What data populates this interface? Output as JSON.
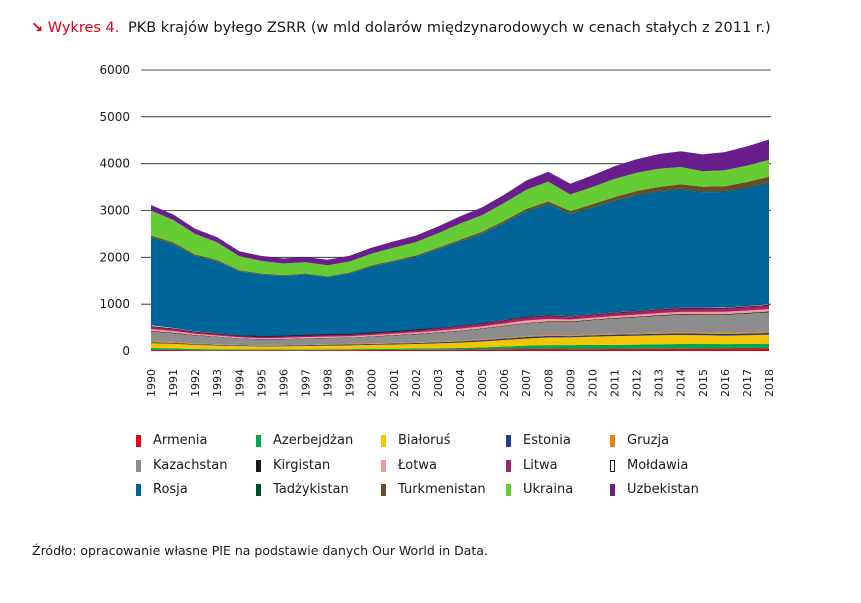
{
  "header": {
    "arrow": "↘",
    "prefix": "Wykres 4.",
    "title": "PKB krajów byłego ZSRR (w mld dolarów międzynarodowych w cenach stałych z 2011 r.)"
  },
  "source": "Źródło: opracowanie własne PIE na podstawie danych Our World in Data.",
  "chart_data": {
    "type": "area",
    "stacked": true,
    "title": "PKB krajów byłego ZSRR (w mld dolarów międzynarodowych w cenach stałych z 2011 r.)",
    "xlabel": "",
    "ylabel": "",
    "ylim": [
      0,
      6000
    ],
    "yticks": [
      0,
      1000,
      2000,
      3000,
      4000,
      5000,
      6000
    ],
    "grid": "horizontal",
    "legend_position": "bottom",
    "x": [
      1990,
      1991,
      1992,
      1993,
      1994,
      1995,
      1996,
      1997,
      1998,
      1999,
      2000,
      2001,
      2002,
      2003,
      2004,
      2005,
      2006,
      2007,
      2008,
      2009,
      2010,
      2011,
      2012,
      2013,
      2014,
      2015,
      2016,
      2017,
      2018
    ],
    "series": [
      {
        "name": "Armenia",
        "color": "#e2001a",
        "values": [
          25,
          22,
          15,
          14,
          14,
          15,
          16,
          17,
          18,
          19,
          20,
          22,
          24,
          27,
          30,
          34,
          38,
          43,
          46,
          39,
          40,
          42,
          45,
          47,
          49,
          50,
          50,
          54,
          57
        ]
      },
      {
        "name": "Azerbejdżan",
        "color": "#00a651",
        "values": [
          40,
          35,
          28,
          22,
          18,
          16,
          16,
          17,
          19,
          20,
          23,
          25,
          28,
          31,
          34,
          43,
          57,
          71,
          79,
          86,
          90,
          90,
          92,
          97,
          100,
          101,
          98,
          98,
          100
        ]
      },
      {
        "name": "Białoruś",
        "color": "#f5c400",
        "values": [
          100,
          98,
          88,
          82,
          72,
          65,
          66,
          73,
          79,
          82,
          88,
          92,
          97,
          104,
          115,
          126,
          139,
          150,
          165,
          165,
          177,
          186,
          189,
          191,
          194,
          186,
          181,
          185,
          191
        ]
      },
      {
        "name": "Estonia",
        "color": "#1d3f8f",
        "values": [
          20,
          18,
          16,
          15,
          15,
          15,
          16,
          18,
          19,
          19,
          20,
          22,
          23,
          25,
          27,
          29,
          32,
          35,
          33,
          28,
          29,
          31,
          32,
          33,
          34,
          34,
          35,
          37,
          38
        ]
      },
      {
        "name": "Gruzja",
        "color": "#e6830b",
        "values": [
          30,
          24,
          14,
          10,
          9,
          9,
          10,
          11,
          11,
          11,
          12,
          12,
          13,
          14,
          15,
          16,
          18,
          20,
          20,
          19,
          20,
          21,
          23,
          24,
          25,
          26,
          27,
          28,
          30
        ]
      },
      {
        "name": "Kazachstan",
        "color": "#8c8c8c",
        "values": [
          200,
          180,
          170,
          155,
          135,
          125,
          125,
          127,
          125,
          128,
          140,
          155,
          171,
          186,
          204,
          224,
          247,
          268,
          277,
          280,
          300,
          321,
          336,
          356,
          371,
          375,
          380,
          395,
          410
        ]
      },
      {
        "name": "Kirgistan",
        "color": "#1a1a1a",
        "values": [
          15,
          14,
          12,
          10,
          8,
          8,
          8,
          9,
          9,
          9,
          10,
          10,
          10,
          11,
          11,
          11,
          11,
          12,
          13,
          13,
          13,
          14,
          14,
          15,
          16,
          16,
          17,
          18,
          18
        ]
      },
      {
        "name": "Łotwa",
        "color": "#f09a9a",
        "values": [
          40,
          35,
          25,
          22,
          22,
          22,
          23,
          25,
          26,
          27,
          28,
          30,
          32,
          35,
          38,
          42,
          46,
          51,
          49,
          42,
          41,
          43,
          45,
          46,
          47,
          48,
          49,
          51,
          53
        ]
      },
      {
        "name": "Litwa",
        "color": "#a5206b",
        "values": [
          55,
          50,
          40,
          35,
          32,
          33,
          35,
          37,
          40,
          40,
          42,
          45,
          48,
          53,
          57,
          61,
          66,
          71,
          73,
          62,
          63,
          67,
          70,
          73,
          75,
          76,
          78,
          81,
          84
        ]
      },
      {
        "name": "Mołdawia",
        "color": "#ffffff",
        "stroke": "#1a1a1a",
        "values": [
          30,
          25,
          20,
          18,
          14,
          13,
          12,
          12,
          11,
          10,
          11,
          11,
          12,
          13,
          14,
          15,
          16,
          16,
          17,
          16,
          17,
          18,
          18,
          19,
          19,
          19,
          20,
          21,
          22
        ]
      },
      {
        "name": "Rosja",
        "color": "#006699",
        "values": [
          1870,
          1780,
          1600,
          1530,
          1360,
          1310,
          1270,
          1290,
          1220,
          1290,
          1410,
          1480,
          1550,
          1670,
          1790,
          1900,
          2060,
          2240,
          2360,
          2170,
          2270,
          2370,
          2460,
          2500,
          2520,
          2460,
          2460,
          2510,
          2580
        ]
      },
      {
        "name": "Tadżykistan",
        "color": "#004d26",
        "values": [
          12,
          11,
          8,
          7,
          6,
          6,
          5,
          5,
          5,
          5,
          6,
          6,
          7,
          7,
          8,
          9,
          9,
          10,
          11,
          11,
          12,
          13,
          14,
          15,
          16,
          17,
          18,
          19,
          20
        ]
      },
      {
        "name": "Turkmenistan",
        "color": "#6b4a26",
        "values": [
          30,
          29,
          25,
          22,
          20,
          18,
          17,
          14,
          15,
          17,
          20,
          23,
          25,
          28,
          32,
          36,
          40,
          45,
          53,
          56,
          61,
          70,
          77,
          85,
          94,
          100,
          106,
          112,
          119
        ]
      },
      {
        "name": "Ukraina",
        "color": "#66cc33",
        "values": [
          530,
          480,
          440,
          380,
          300,
          270,
          250,
          240,
          235,
          235,
          250,
          275,
          285,
          310,
          345,
          355,
          380,
          410,
          420,
          355,
          370,
          390,
          390,
          390,
          370,
          330,
          340,
          350,
          360
        ]
      },
      {
        "name": "Uzbekistan",
        "color": "#6a1d8c",
        "values": [
          120,
          115,
          110,
          108,
          104,
          105,
          107,
          112,
          117,
          122,
          127,
          133,
          138,
          144,
          155,
          166,
          178,
          195,
          211,
          228,
          247,
          268,
          290,
          312,
          335,
          360,
          388,
          410,
          435
        ]
      }
    ]
  }
}
